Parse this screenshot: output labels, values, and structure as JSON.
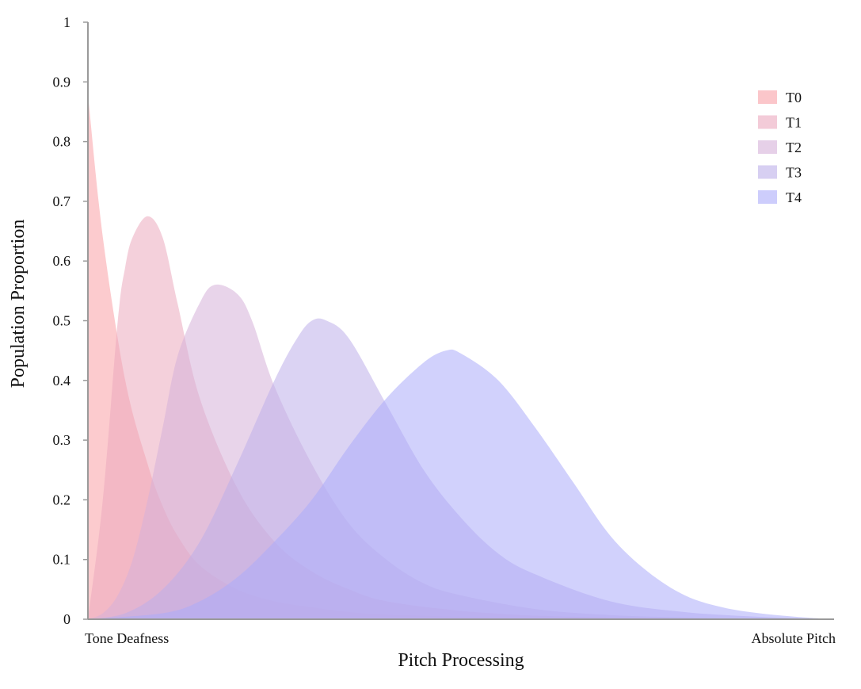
{
  "chart_data": {
    "type": "area",
    "xlabel": "Pitch Processing",
    "ylabel": "Population Proportion",
    "x_left_label": "Tone Deafness",
    "x_right_label": "Absolute Pitch",
    "ylim": [
      0,
      1
    ],
    "xlim": [
      0,
      1
    ],
    "y_ticks": [
      "0",
      "0.1",
      "0.2",
      "0.3",
      "0.4",
      "0.5",
      "0.6",
      "0.7",
      "0.8",
      "0.9",
      "1"
    ],
    "grid": false,
    "legend_position": "top-right",
    "series": [
      {
        "name": "T0",
        "color": "#F9A0A6",
        "x": [
          0,
          0.02,
          0.05,
          0.08,
          0.1,
          0.12,
          0.15,
          0.2,
          0.25,
          0.3,
          0.35,
          0.4,
          0.5,
          0.6,
          0.7,
          0.8,
          0.9,
          1
        ],
        "values": [
          0.88,
          0.64,
          0.4,
          0.26,
          0.19,
          0.14,
          0.09,
          0.05,
          0.03,
          0.02,
          0.012,
          0.008,
          0.004,
          0.002,
          0.001,
          0.0005,
          0.0002,
          0
        ]
      },
      {
        "name": "T1",
        "color": "#EBA9BE",
        "x": [
          0,
          0.02,
          0.04,
          0.05,
          0.06,
          0.08,
          0.1,
          0.12,
          0.15,
          0.2,
          0.25,
          0.3,
          0.35,
          0.4,
          0.5,
          0.6,
          0.7,
          0.8,
          0.9,
          1
        ],
        "values": [
          0,
          0.2,
          0.5,
          0.59,
          0.64,
          0.675,
          0.64,
          0.53,
          0.37,
          0.22,
          0.13,
          0.08,
          0.05,
          0.03,
          0.014,
          0.006,
          0.003,
          0.001,
          0.0005,
          0
        ]
      },
      {
        "name": "T2",
        "color": "#D6B0D9",
        "x": [
          0,
          0.02,
          0.04,
          0.06,
          0.08,
          0.1,
          0.12,
          0.15,
          0.17,
          0.2,
          0.22,
          0.25,
          0.3,
          0.35,
          0.4,
          0.45,
          0.5,
          0.6,
          0.7,
          0.8,
          0.9,
          1
        ],
        "values": [
          0,
          0.01,
          0.04,
          0.1,
          0.2,
          0.32,
          0.44,
          0.53,
          0.56,
          0.545,
          0.5,
          0.39,
          0.26,
          0.16,
          0.1,
          0.06,
          0.04,
          0.017,
          0.007,
          0.003,
          0.001,
          0
        ]
      },
      {
        "name": "T3",
        "color": "#BDAFEA",
        "x": [
          0,
          0.05,
          0.1,
          0.15,
          0.2,
          0.25,
          0.28,
          0.3,
          0.32,
          0.35,
          0.4,
          0.45,
          0.5,
          0.55,
          0.6,
          0.7,
          0.8,
          0.9,
          1
        ],
        "values": [
          0,
          0.01,
          0.05,
          0.13,
          0.26,
          0.4,
          0.47,
          0.5,
          0.5,
          0.47,
          0.36,
          0.25,
          0.17,
          0.11,
          0.075,
          0.03,
          0.012,
          0.004,
          0
        ]
      },
      {
        "name": "T4",
        "color": "#ABACFA",
        "x": [
          0,
          0.1,
          0.15,
          0.2,
          0.25,
          0.3,
          0.35,
          0.4,
          0.45,
          0.48,
          0.5,
          0.55,
          0.6,
          0.65,
          0.7,
          0.75,
          0.8,
          0.85,
          0.9,
          0.95,
          1
        ],
        "values": [
          0,
          0.01,
          0.03,
          0.07,
          0.13,
          0.2,
          0.29,
          0.37,
          0.43,
          0.45,
          0.445,
          0.4,
          0.32,
          0.23,
          0.14,
          0.08,
          0.04,
          0.02,
          0.01,
          0.004,
          0
        ]
      }
    ]
  }
}
